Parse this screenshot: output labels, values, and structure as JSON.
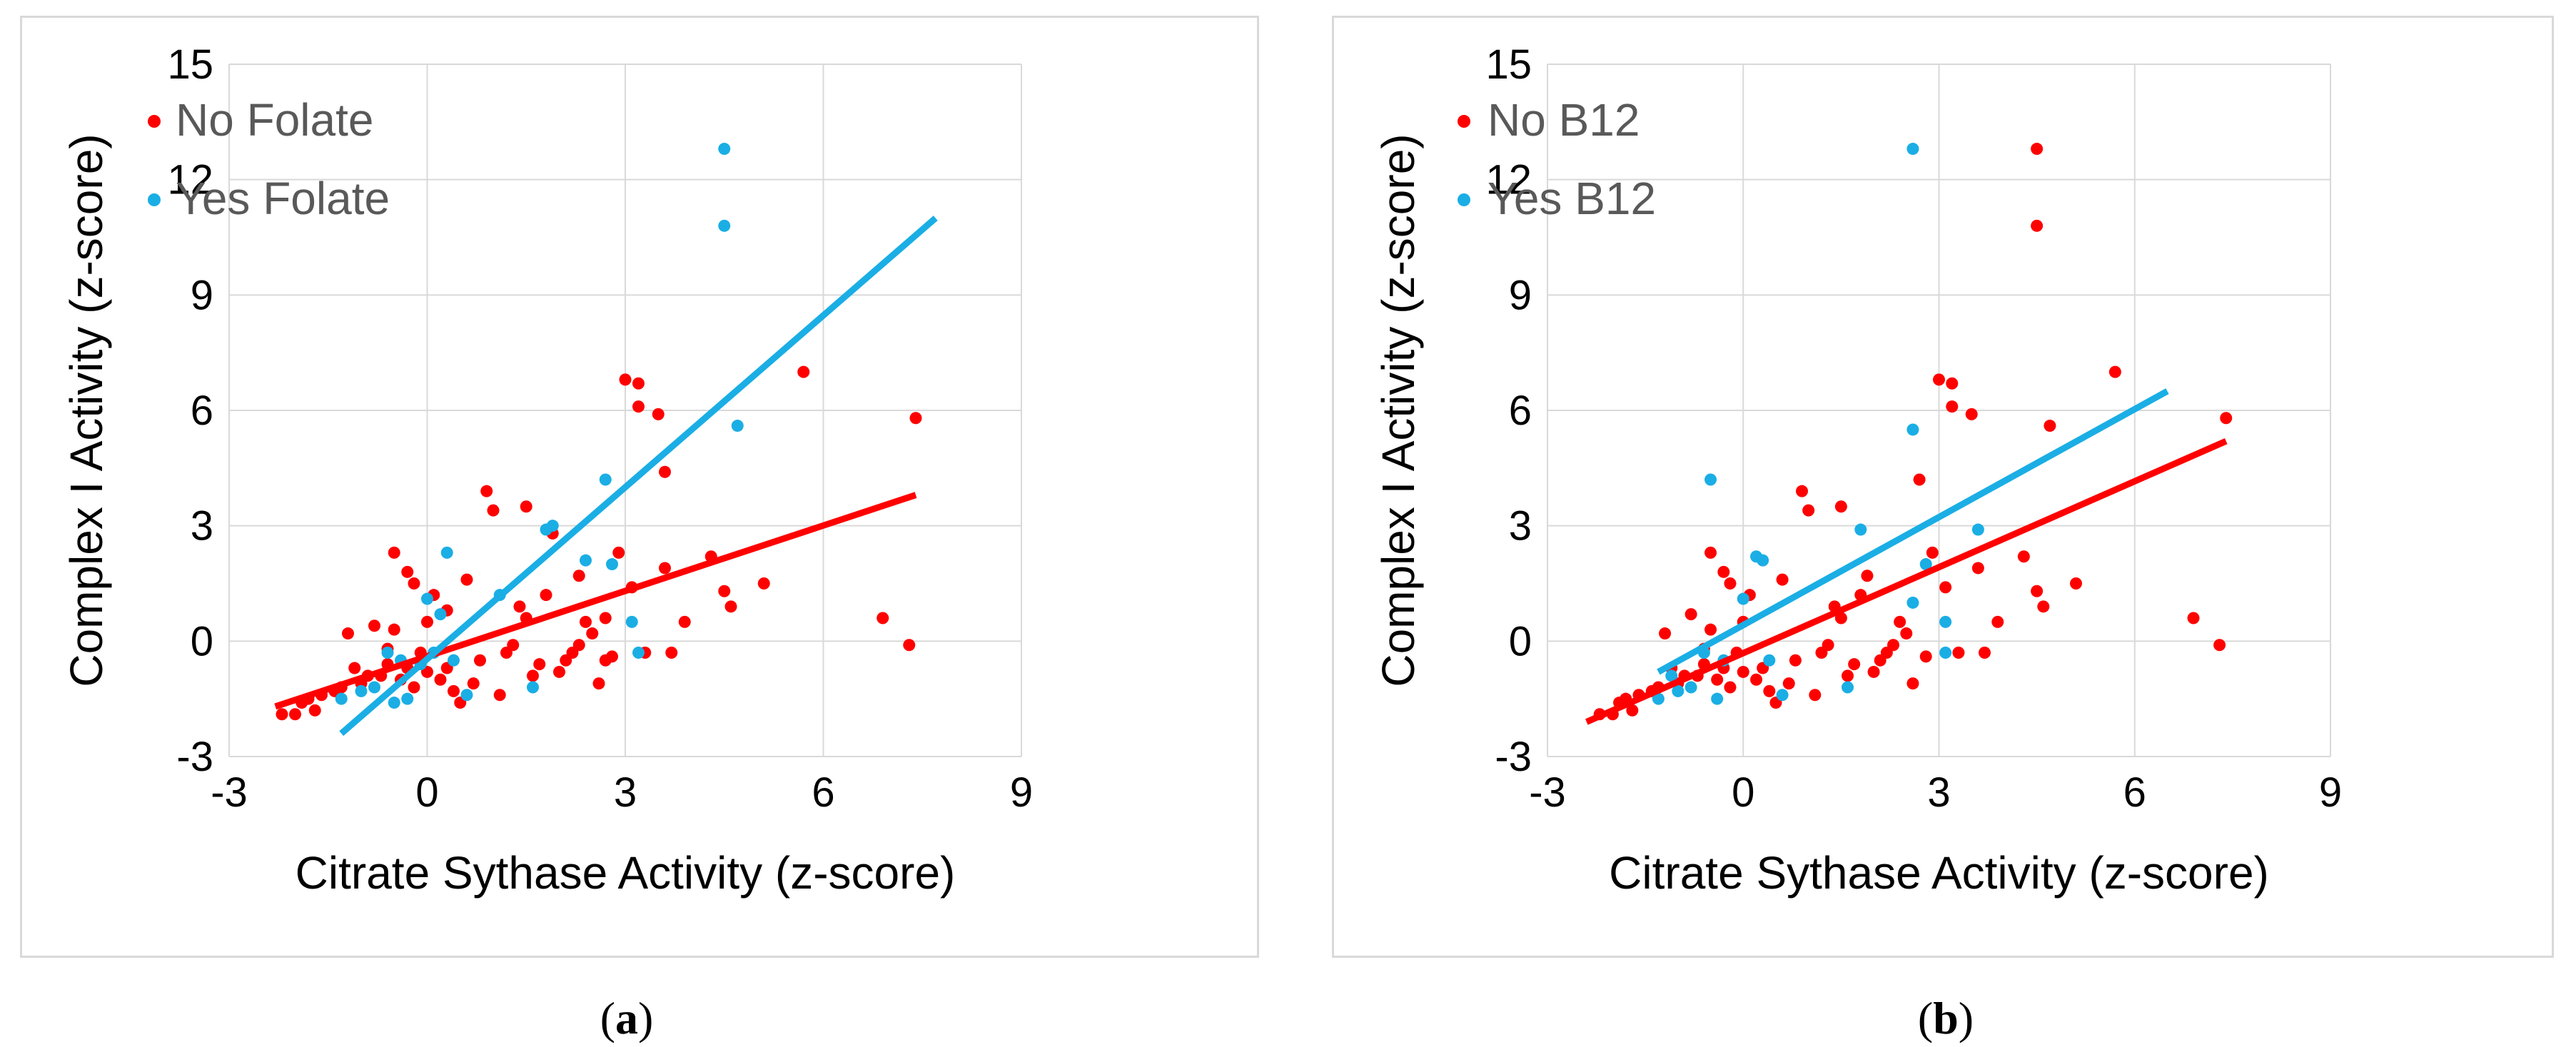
{
  "chart_data": [
    {
      "type": "scatter",
      "xlabel": "Citrate Sythase Activity (z-score)",
      "ylabel": "Complex I Activity (z-score)",
      "xlim": [
        -3,
        9
      ],
      "ylim": [
        -3,
        15
      ],
      "xticks": [
        "-3",
        "0",
        "3",
        "6",
        "9"
      ],
      "yticks": [
        "-3",
        "0",
        "3",
        "6",
        "9",
        "12",
        "15"
      ],
      "grid": true,
      "legend_position": "top-left",
      "colors": {
        "red": "#ff0000",
        "blue": "#1aaee5",
        "grid": "#d9d9d9"
      },
      "series": [
        {
          "name": "No Folate",
          "color": "#ff0000",
          "points": [
            [
              -2.2,
              -1.9
            ],
            [
              -2.0,
              -1.9
            ],
            [
              -1.9,
              -1.6
            ],
            [
              -1.8,
              -1.5
            ],
            [
              -1.7,
              -1.8
            ],
            [
              -1.6,
              -1.4
            ],
            [
              -1.4,
              -1.3
            ],
            [
              -1.3,
              -1.2
            ],
            [
              -1.2,
              0.2
            ],
            [
              -1.1,
              -0.7
            ],
            [
              -1.0,
              -1.1
            ],
            [
              -0.9,
              -0.9
            ],
            [
              -0.8,
              0.4
            ],
            [
              -0.7,
              -0.9
            ],
            [
              -0.6,
              -0.6
            ],
            [
              -0.5,
              0.3
            ],
            [
              -0.4,
              -1.0
            ],
            [
              -0.3,
              -0.7
            ],
            [
              -0.2,
              -1.2
            ],
            [
              -0.5,
              2.3
            ],
            [
              -0.3,
              1.8
            ],
            [
              -0.2,
              1.5
            ],
            [
              -0.1,
              -0.3
            ],
            [
              0.0,
              -0.8
            ],
            [
              0.1,
              1.2
            ],
            [
              0.2,
              -1.0
            ],
            [
              0.3,
              -0.7
            ],
            [
              0.4,
              -1.3
            ],
            [
              0.5,
              -1.6
            ],
            [
              0.6,
              1.6
            ],
            [
              0.7,
              -1.1
            ],
            [
              0.8,
              -0.5
            ],
            [
              0.9,
              3.9
            ],
            [
              1.0,
              3.4
            ],
            [
              1.1,
              -1.4
            ],
            [
              1.2,
              -0.3
            ],
            [
              1.3,
              -0.1
            ],
            [
              1.4,
              0.9
            ],
            [
              1.5,
              3.5
            ],
            [
              1.6,
              -0.9
            ],
            [
              1.7,
              -0.6
            ],
            [
              1.8,
              1.2
            ],
            [
              1.9,
              2.8
            ],
            [
              2.0,
              -0.8
            ],
            [
              2.1,
              -0.5
            ],
            [
              2.2,
              -0.3
            ],
            [
              2.3,
              -0.1
            ],
            [
              2.4,
              0.5
            ],
            [
              2.5,
              0.2
            ],
            [
              2.6,
              -1.1
            ],
            [
              2.7,
              0.6
            ],
            [
              2.8,
              -0.4
            ],
            [
              2.9,
              2.3
            ],
            [
              3.0,
              6.8
            ],
            [
              3.1,
              1.4
            ],
            [
              3.2,
              6.1
            ],
            [
              3.2,
              6.7
            ],
            [
              3.3,
              -0.3
            ],
            [
              3.5,
              5.9
            ],
            [
              3.6,
              4.4
            ],
            [
              3.6,
              1.9
            ],
            [
              3.7,
              -0.3
            ],
            [
              3.9,
              0.5
            ],
            [
              4.3,
              2.2
            ],
            [
              4.5,
              1.3
            ],
            [
              4.6,
              0.9
            ],
            [
              5.1,
              1.5
            ],
            [
              5.7,
              7.0
            ],
            [
              6.9,
              0.6
            ],
            [
              7.3,
              -0.1
            ],
            [
              7.4,
              5.8
            ],
            [
              0.3,
              0.8
            ],
            [
              0.0,
              0.5
            ],
            [
              -0.6,
              -0.2
            ],
            [
              1.5,
              0.6
            ],
            [
              2.3,
              1.7
            ],
            [
              2.7,
              -0.5
            ]
          ]
        },
        {
          "name": "Yes Folate",
          "color": "#1aaee5",
          "points": [
            [
              -1.3,
              -1.5
            ],
            [
              -1.0,
              -1.3
            ],
            [
              -0.8,
              -1.2
            ],
            [
              -0.6,
              -0.3
            ],
            [
              -0.5,
              -1.6
            ],
            [
              -0.4,
              -0.5
            ],
            [
              -0.3,
              -1.5
            ],
            [
              -0.1,
              -0.6
            ],
            [
              0.0,
              1.1
            ],
            [
              0.1,
              -0.3
            ],
            [
              0.2,
              0.7
            ],
            [
              0.3,
              2.3
            ],
            [
              0.4,
              -0.5
            ],
            [
              0.6,
              -1.4
            ],
            [
              1.1,
              1.2
            ],
            [
              1.6,
              -1.2
            ],
            [
              1.8,
              2.9
            ],
            [
              1.9,
              3.0
            ],
            [
              2.4,
              2.1
            ],
            [
              2.7,
              4.2
            ],
            [
              2.8,
              2.0
            ],
            [
              3.1,
              0.5
            ],
            [
              3.2,
              -0.3
            ],
            [
              4.5,
              12.8
            ],
            [
              4.5,
              10.8
            ],
            [
              4.7,
              5.6
            ]
          ]
        }
      ],
      "trendlines": [
        {
          "series": "No Folate",
          "color": "#ff0000",
          "from": [
            -2.3,
            -1.7
          ],
          "to": [
            7.4,
            3.8
          ]
        },
        {
          "series": "Yes Folate",
          "color": "#1aaee5",
          "from": [
            -1.3,
            -2.4
          ],
          "to": [
            7.7,
            11.0
          ]
        }
      ],
      "caption": {
        "open": "(",
        "letter": "a",
        "close": ")"
      }
    },
    {
      "type": "scatter",
      "xlabel": "Citrate Sythase Activity (z-score)",
      "ylabel": "Complex I Activity (z-score)",
      "xlim": [
        -3,
        9
      ],
      "ylim": [
        -3,
        15
      ],
      "xticks": [
        "-3",
        "0",
        "3",
        "6",
        "9"
      ],
      "yticks": [
        "-3",
        "0",
        "3",
        "6",
        "9",
        "12",
        "15"
      ],
      "grid": true,
      "legend_position": "top-left",
      "colors": {
        "red": "#ff0000",
        "blue": "#1aaee5",
        "grid": "#d9d9d9"
      },
      "series": [
        {
          "name": "No B12",
          "color": "#ff0000",
          "points": [
            [
              -2.2,
              -1.9
            ],
            [
              -2.0,
              -1.9
            ],
            [
              -1.9,
              -1.6
            ],
            [
              -1.8,
              -1.5
            ],
            [
              -1.7,
              -1.8
            ],
            [
              -1.6,
              -1.4
            ],
            [
              -1.4,
              -1.3
            ],
            [
              -1.3,
              -1.2
            ],
            [
              -1.2,
              0.2
            ],
            [
              -1.1,
              -0.7
            ],
            [
              -1.0,
              -1.1
            ],
            [
              -0.9,
              -0.9
            ],
            [
              -0.8,
              0.7
            ],
            [
              -0.7,
              -0.9
            ],
            [
              -0.6,
              -0.6
            ],
            [
              -0.5,
              0.3
            ],
            [
              -0.4,
              -1.0
            ],
            [
              -0.3,
              -0.7
            ],
            [
              -0.2,
              -1.2
            ],
            [
              -0.5,
              2.3
            ],
            [
              -0.3,
              1.8
            ],
            [
              -0.2,
              1.5
            ],
            [
              -0.1,
              -0.3
            ],
            [
              0.0,
              -0.8
            ],
            [
              0.1,
              1.2
            ],
            [
              0.2,
              -1.0
            ],
            [
              0.3,
              -0.7
            ],
            [
              0.4,
              -1.3
            ],
            [
              0.5,
              -1.6
            ],
            [
              0.6,
              1.6
            ],
            [
              0.7,
              -1.1
            ],
            [
              0.8,
              -0.5
            ],
            [
              0.9,
              3.9
            ],
            [
              1.0,
              3.4
            ],
            [
              1.1,
              -1.4
            ],
            [
              1.2,
              -0.3
            ],
            [
              1.3,
              -0.1
            ],
            [
              1.4,
              0.9
            ],
            [
              1.5,
              3.5
            ],
            [
              1.6,
              -0.9
            ],
            [
              1.7,
              -0.6
            ],
            [
              1.8,
              1.2
            ],
            [
              1.9,
              1.7
            ],
            [
              2.0,
              -0.8
            ],
            [
              2.1,
              -0.5
            ],
            [
              2.2,
              -0.3
            ],
            [
              2.3,
              -0.1
            ],
            [
              2.4,
              0.5
            ],
            [
              2.5,
              0.2
            ],
            [
              2.6,
              -1.1
            ],
            [
              2.7,
              4.2
            ],
            [
              2.8,
              -0.4
            ],
            [
              2.9,
              2.3
            ],
            [
              3.0,
              6.8
            ],
            [
              3.1,
              1.4
            ],
            [
              3.2,
              6.1
            ],
            [
              3.2,
              6.7
            ],
            [
              3.3,
              -0.3
            ],
            [
              3.5,
              5.9
            ],
            [
              3.6,
              1.9
            ],
            [
              3.7,
              -0.3
            ],
            [
              3.9,
              0.5
            ],
            [
              4.3,
              2.2
            ],
            [
              4.5,
              1.3
            ],
            [
              4.5,
              12.8
            ],
            [
              4.5,
              10.8
            ],
            [
              4.6,
              0.9
            ],
            [
              4.7,
              5.6
            ],
            [
              5.1,
              1.5
            ],
            [
              5.7,
              7.0
            ],
            [
              6.9,
              0.6
            ],
            [
              7.3,
              -0.1
            ],
            [
              7.4,
              5.8
            ],
            [
              0.0,
              0.5
            ],
            [
              -0.6,
              -0.2
            ],
            [
              1.5,
              0.6
            ]
          ]
        },
        {
          "name": "Yes B12",
          "color": "#1aaee5",
          "points": [
            [
              -1.3,
              -1.5
            ],
            [
              -1.0,
              -1.3
            ],
            [
              -0.8,
              -1.2
            ],
            [
              -0.6,
              -0.3
            ],
            [
              -0.5,
              4.2
            ],
            [
              -0.4,
              -1.5
            ],
            [
              -0.3,
              -0.5
            ],
            [
              0.0,
              1.1
            ],
            [
              0.2,
              2.2
            ],
            [
              0.3,
              2.1
            ],
            [
              0.4,
              -0.5
            ],
            [
              1.6,
              -1.2
            ],
            [
              1.8,
              2.9
            ],
            [
              2.6,
              12.8
            ],
            [
              2.6,
              5.5
            ],
            [
              2.6,
              1.0
            ],
            [
              2.8,
              2.0
            ],
            [
              3.1,
              -0.3
            ],
            [
              3.1,
              0.5
            ],
            [
              3.6,
              2.9
            ],
            [
              -1.1,
              -0.9
            ],
            [
              0.6,
              -1.4
            ]
          ]
        }
      ],
      "trendlines": [
        {
          "series": "No B12",
          "color": "#ff0000",
          "from": [
            -2.4,
            -2.1
          ],
          "to": [
            7.4,
            5.2
          ]
        },
        {
          "series": "Yes B12",
          "color": "#1aaee5",
          "from": [
            -1.3,
            -0.8
          ],
          "to": [
            6.5,
            6.5
          ]
        }
      ],
      "caption": {
        "open": "(",
        "letter": "b",
        "close": ")"
      }
    }
  ]
}
